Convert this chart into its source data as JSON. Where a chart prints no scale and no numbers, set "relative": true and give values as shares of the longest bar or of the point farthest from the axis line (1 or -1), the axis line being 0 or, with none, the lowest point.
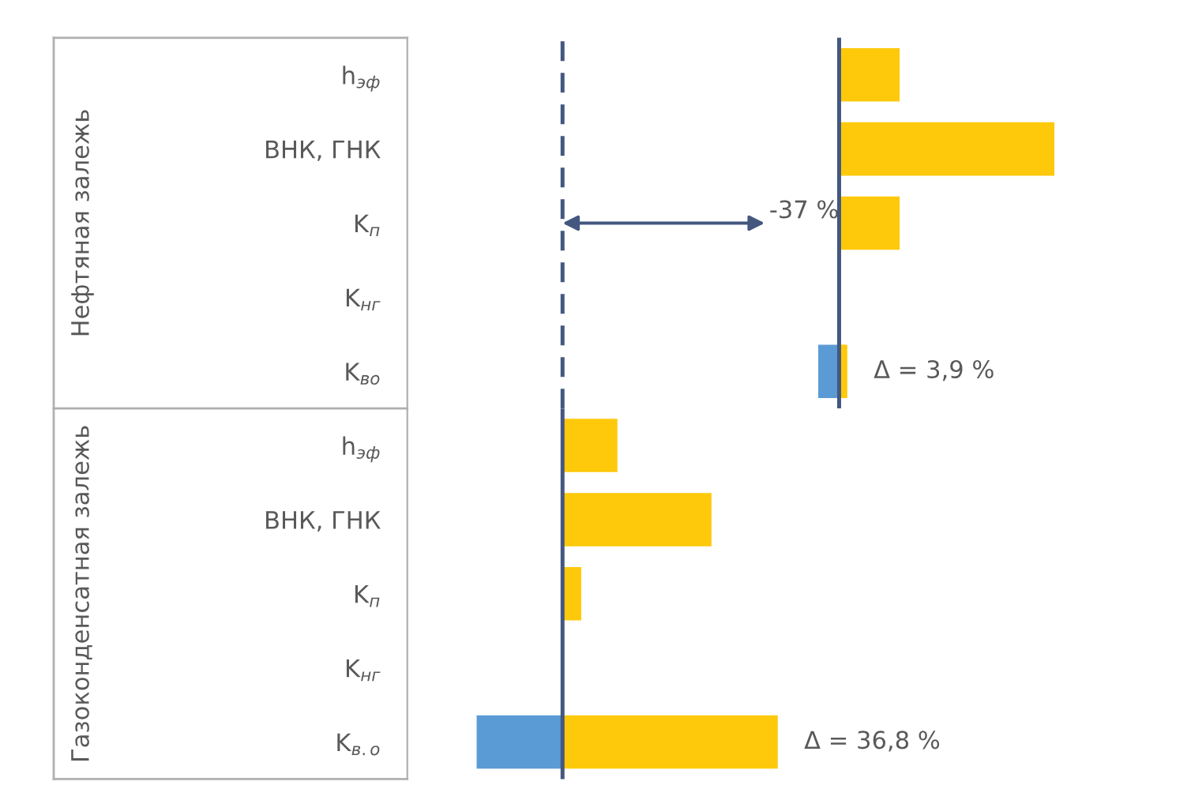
{
  "chart_data": [
    {
      "type": "bar",
      "orientation": "horizontal",
      "relative": true,
      "ylabel": "Нефтяная залежь",
      "categories": [
        "h$_{эф}$",
        "ВНК, ГНК",
        "K$_{п}$",
        "K$_{нг}$",
        "K$_{во}$"
      ],
      "series": [
        {
          "color": "#fec90b",
          "values": [
            0.281,
            1,
            0.281,
            null,
            0.038
          ]
        },
        {
          "color": "#5b9bd5",
          "values": [
            null,
            null,
            null,
            null,
            -0.097
          ]
        }
      ],
      "ref_lines": [
        {
          "axis": "x",
          "value": 0,
          "color": "#44577f",
          "line_style": "solid"
        },
        {
          "axis": "x",
          "value": -1.285,
          "color": "#44577f",
          "line_style": "dashed"
        }
      ],
      "annotations": [
        "-37 %",
        "Δ = 3,9 %"
      ],
      "tick_labels": "y"
    },
    {
      "type": "bar",
      "orientation": "horizontal",
      "relative": true,
      "ylabel": "Газоконденсатная залежь",
      "categories": [
        "h$_{эф}$",
        "ВНК, ГНК",
        "K$_{п}$",
        "K$_{нг}$",
        "K$_{в.о}$"
      ],
      "series": [
        {
          "color": "#fec90b",
          "values": [
            0.255,
            0.692,
            0.087,
            null,
            1
          ]
        },
        {
          "color": "#5b9bd5",
          "values": [
            null,
            null,
            null,
            null,
            -0.399
          ]
        }
      ],
      "ref_lines": [
        {
          "axis": "x",
          "value": 0,
          "color": "#44577f",
          "line_style": "solid"
        }
      ],
      "annotations": [
        "Δ = 36,8 %"
      ],
      "tick_labels": "y"
    }
  ]
}
